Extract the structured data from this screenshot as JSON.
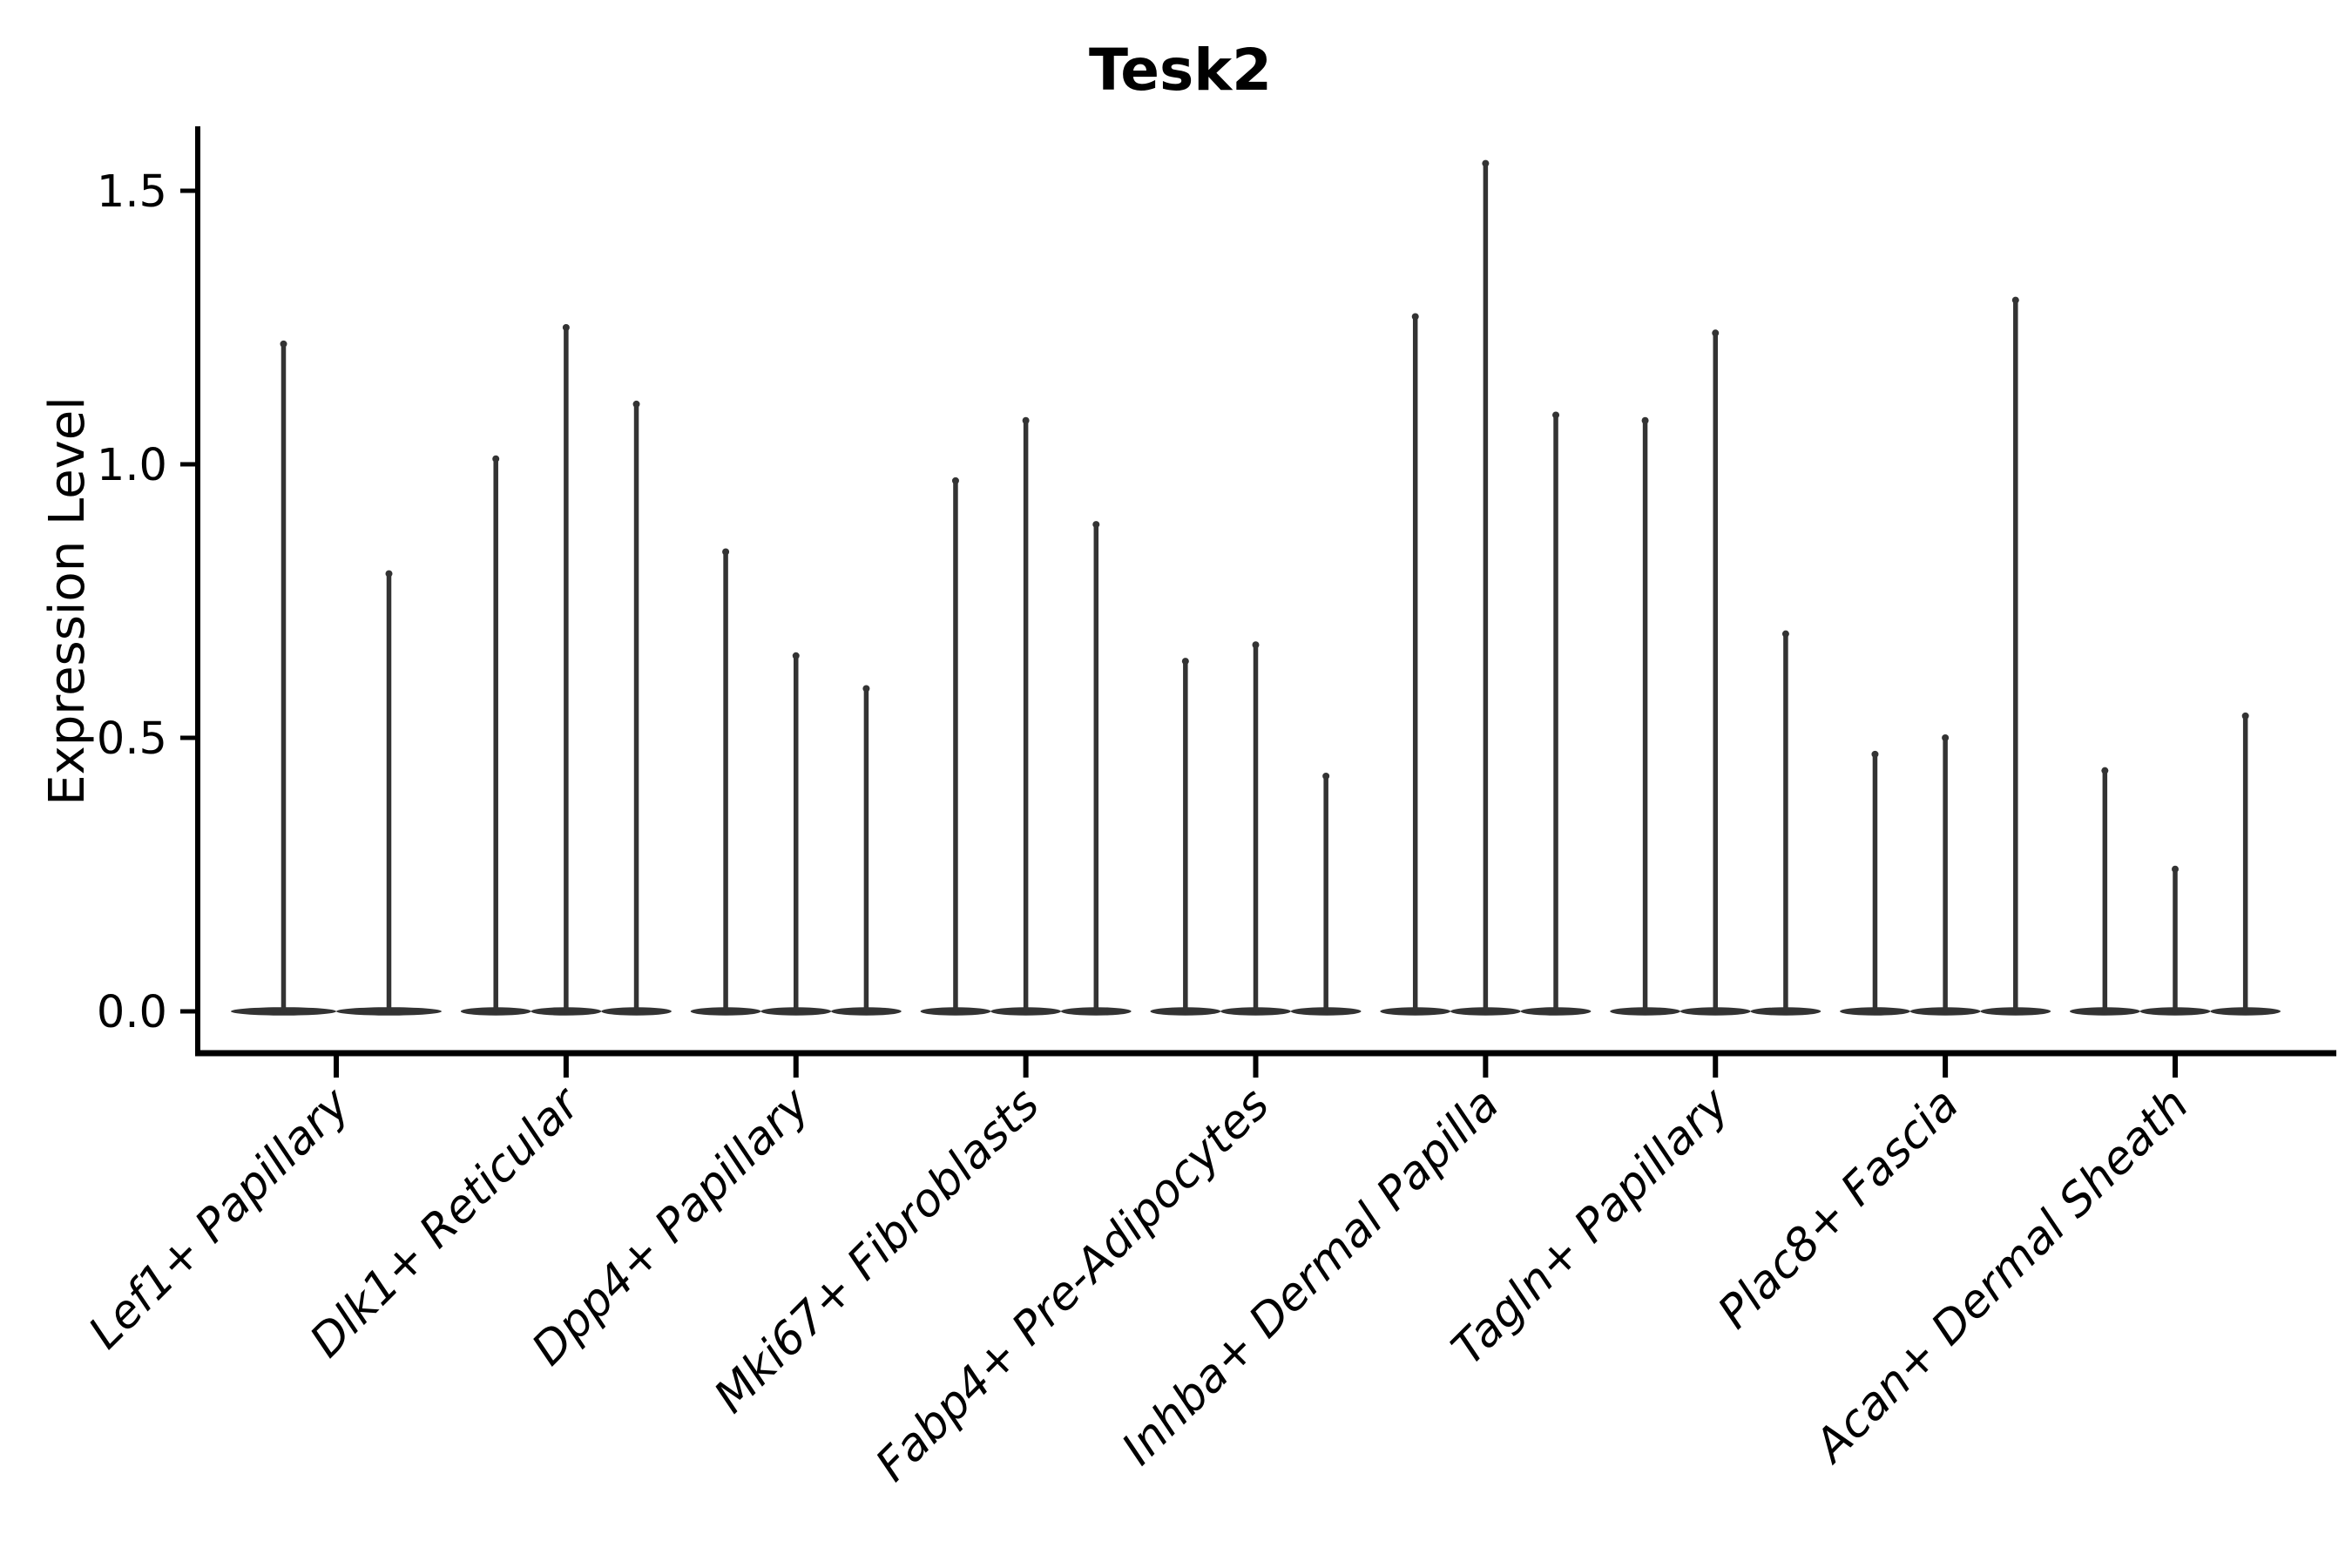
{
  "title": "Tesk2",
  "colors": {
    "violin": "#333333",
    "axis": "#000000",
    "text": "#000000",
    "background": "#ffffff"
  },
  "chart_data": {
    "type": "violin",
    "title": "Tesk2",
    "xlabel": "",
    "ylabel": "Expression Level",
    "ylim": [
      -0.08,
      1.62
    ],
    "y_ticks": [
      0.0,
      0.5,
      1.0,
      1.5
    ],
    "y_tick_labels": [
      "0.0",
      "0.5",
      "1.0",
      "1.5"
    ],
    "legend": "none",
    "grid": false,
    "categories": [
      "Lef1+ Papillary",
      "Dlk1+ Reticular",
      "Dpp4+ Papillary",
      "Mki67+ Fibroblasts",
      "Fabp4+ Pre-Adipocytes",
      "Inhba+ Dermal Papilla",
      "Tagln+ Papillary",
      "Plac8+ Fascia",
      "Acan+ Dermal Sheath"
    ],
    "series": [
      {
        "category": "Lef1+ Papillary",
        "violin_maxima": [
          1.22,
          0.8
        ]
      },
      {
        "category": "Dlk1+ Reticular",
        "violin_maxima": [
          1.01,
          1.25,
          1.11
        ]
      },
      {
        "category": "Dpp4+ Papillary",
        "violin_maxima": [
          0.84,
          0.65,
          0.59
        ]
      },
      {
        "category": "Mki67+ Fibroblasts",
        "violin_maxima": [
          0.97,
          1.08,
          0.89
        ]
      },
      {
        "category": "Fabp4+ Pre-Adipocytes",
        "violin_maxima": [
          0.64,
          0.67,
          0.43
        ]
      },
      {
        "category": "Inhba+ Dermal Papilla",
        "violin_maxima": [
          1.27,
          1.55,
          1.09
        ]
      },
      {
        "category": "Tagln+ Papillary",
        "violin_maxima": [
          1.08,
          1.24,
          0.69
        ]
      },
      {
        "category": "Plac8+ Fascia",
        "violin_maxima": [
          0.47,
          0.5,
          1.3
        ]
      },
      {
        "category": "Acan+ Dermal Sheath",
        "violin_maxima": [
          0.44,
          0.26,
          0.54
        ]
      }
    ]
  }
}
